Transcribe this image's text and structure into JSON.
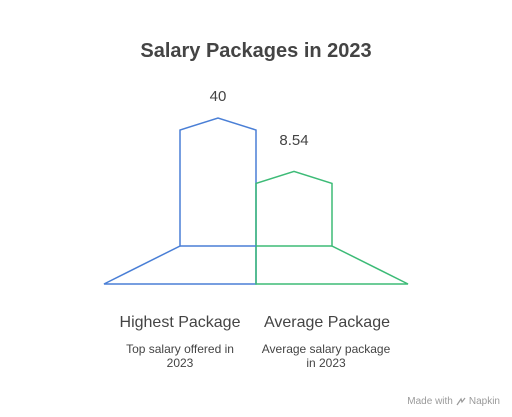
{
  "title": "Salary Packages in 2023",
  "chart_data": {
    "type": "bar",
    "title": "Salary Packages in 2023",
    "categories": [
      "Highest Package",
      "Average Package"
    ],
    "values": [
      40,
      8.54
    ],
    "value_labels": [
      "40",
      "8.54"
    ],
    "descriptions": [
      "Top salary offered in 2023",
      "Average salary package in 2023"
    ],
    "colors": [
      "#4a7fd6",
      "#3dbb77"
    ]
  },
  "footer": {
    "made_with": "Made with",
    "brand": "Napkin"
  }
}
